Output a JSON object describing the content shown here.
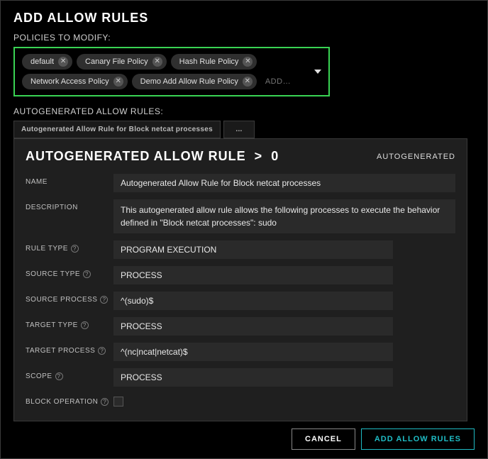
{
  "colors": {
    "accent_green": "#39d353",
    "accent_teal": "#1fbcc5",
    "bg": "#000000",
    "panel_bg": "#1f1f1f",
    "input_bg": "#2a2a2a",
    "chip_bg": "#2f2f2f",
    "border": "#3a3a3a",
    "text": "#e0e0e0"
  },
  "dialog": {
    "title": "ADD ALLOW RULES"
  },
  "policies": {
    "label": "POLICIES TO MODIFY:",
    "add_placeholder": "ADD…",
    "chips": [
      "default",
      "Canary File Policy",
      "Hash Rule Policy",
      "Network Access Policy",
      "Demo Add Allow Rule Policy"
    ]
  },
  "autogen": {
    "label": "AUTOGENERATED ALLOW RULES:",
    "tabs": [
      "Autogenerated Allow Rule for Block netcat processes",
      "..."
    ]
  },
  "rule": {
    "title_prefix": "AUTOGENERATED ALLOW RULE",
    "gt": ">",
    "index": "0",
    "badge": "AUTOGENERATED",
    "fields": {
      "name": {
        "label": "NAME",
        "value": "Autogenerated Allow Rule for Block netcat processes"
      },
      "description": {
        "label": "DESCRIPTION",
        "value": "This autogenerated allow rule allows the following processes to execute the behavior defined in \"Block netcat processes\": sudo"
      },
      "rule_type": {
        "label": "RULE TYPE",
        "value": "PROGRAM EXECUTION"
      },
      "source_type": {
        "label": "SOURCE TYPE",
        "value": "PROCESS"
      },
      "source_process": {
        "label": "SOURCE PROCESS",
        "value": "^(sudo)$"
      },
      "target_type": {
        "label": "TARGET TYPE",
        "value": "PROCESS"
      },
      "target_process": {
        "label": "TARGET PROCESS",
        "value": "^(nc|ncat|netcat)$"
      },
      "scope": {
        "label": "SCOPE",
        "value": "PROCESS"
      },
      "block_operation": {
        "label": "BLOCK OPERATION",
        "checked": false
      }
    }
  },
  "footer": {
    "cancel": "CANCEL",
    "submit": "ADD ALLOW RULES"
  }
}
